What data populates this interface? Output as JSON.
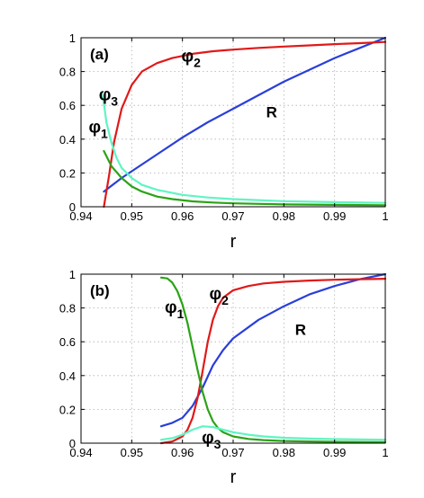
{
  "chart_data": [
    {
      "type": "line",
      "panel_label": "(a)",
      "xlabel": "r",
      "ylabel": "",
      "xlim": [
        0.94,
        1.0
      ],
      "ylim": [
        0,
        1
      ],
      "xticks": [
        0.94,
        0.95,
        0.96,
        0.97,
        0.98,
        0.99,
        1
      ],
      "xtick_labels": [
        "0.94",
        "0.95",
        "0.96",
        "0.97",
        "0.98",
        "0.99",
        "1"
      ],
      "yticks": [
        0,
        0.2,
        0.4,
        0.6,
        0.8,
        1
      ],
      "ytick_labels": [
        "0",
        "0.2",
        "0.4",
        "0.6",
        "0.8",
        "1"
      ],
      "grid": true,
      "series": [
        {
          "name": "R",
          "color": "#2a3fd9",
          "x": [
            0.9445,
            0.948,
            0.952,
            0.956,
            0.96,
            0.965,
            0.97,
            0.975,
            0.98,
            0.985,
            0.99,
            0.995,
            1.0
          ],
          "y": [
            0.09,
            0.17,
            0.25,
            0.33,
            0.41,
            0.5,
            0.58,
            0.66,
            0.74,
            0.81,
            0.88,
            0.94,
            1.0
          ]
        },
        {
          "name": "φ2",
          "color": "#e01919",
          "x": [
            0.9445,
            0.9455,
            0.9465,
            0.948,
            0.95,
            0.952,
            0.955,
            0.958,
            0.962,
            0.966,
            0.97,
            0.975,
            0.98,
            0.985,
            0.99,
            0.995,
            1.0
          ],
          "y": [
            0.0,
            0.18,
            0.38,
            0.58,
            0.72,
            0.8,
            0.85,
            0.88,
            0.905,
            0.92,
            0.93,
            0.94,
            0.948,
            0.955,
            0.962,
            0.968,
            0.975
          ]
        },
        {
          "name": "φ3",
          "color": "#5ff5c2",
          "x": [
            0.9443,
            0.945,
            0.946,
            0.947,
            0.948,
            0.95,
            0.952,
            0.955,
            0.96,
            0.965,
            0.97,
            0.98,
            0.99,
            1.0
          ],
          "y": [
            0.66,
            0.5,
            0.38,
            0.29,
            0.23,
            0.17,
            0.13,
            0.1,
            0.07,
            0.055,
            0.045,
            0.033,
            0.027,
            0.023
          ]
        },
        {
          "name": "φ1",
          "color": "#2aa316",
          "x": [
            0.9445,
            0.946,
            0.948,
            0.95,
            0.952,
            0.955,
            0.958,
            0.962,
            0.966,
            0.97,
            0.98,
            0.99,
            1.0
          ],
          "y": [
            0.33,
            0.24,
            0.17,
            0.12,
            0.09,
            0.06,
            0.045,
            0.032,
            0.025,
            0.02,
            0.014,
            0.011,
            0.009
          ]
        }
      ],
      "annotations": [
        {
          "text": "φ",
          "sub": "3",
          "x": 0.9435,
          "y": 0.63
        },
        {
          "text": "φ",
          "sub": "1",
          "x": 0.9415,
          "y": 0.44
        },
        {
          "text": "φ",
          "sub": "2",
          "x": 0.9598,
          "y": 0.86
        },
        {
          "text": "R",
          "x": 0.9765,
          "y": 0.53
        }
      ]
    },
    {
      "type": "line",
      "panel_label": "(b)",
      "xlabel": "r",
      "ylabel": "",
      "xlim": [
        0.94,
        1.0
      ],
      "ylim": [
        0,
        1
      ],
      "xticks": [
        0.94,
        0.95,
        0.96,
        0.97,
        0.98,
        0.99,
        1
      ],
      "xtick_labels": [
        "0.94",
        "0.95",
        "0.96",
        "0.97",
        "0.98",
        "0.99",
        "1"
      ],
      "yticks": [
        0,
        0.2,
        0.4,
        0.6,
        0.8,
        1
      ],
      "ytick_labels": [
        "0",
        "0.2",
        "0.4",
        "0.6",
        "0.8",
        "1"
      ],
      "grid": true,
      "series": [
        {
          "name": "R",
          "color": "#2a3fd9",
          "x": [
            0.9558,
            0.958,
            0.96,
            0.962,
            0.964,
            0.966,
            0.968,
            0.97,
            0.975,
            0.98,
            0.985,
            0.99,
            0.995,
            1.0
          ],
          "y": [
            0.1,
            0.12,
            0.15,
            0.22,
            0.33,
            0.46,
            0.55,
            0.62,
            0.73,
            0.81,
            0.88,
            0.93,
            0.97,
            1.0
          ]
        },
        {
          "name": "φ2",
          "color": "#e01919",
          "x": [
            0.9558,
            0.958,
            0.96,
            0.961,
            0.962,
            0.963,
            0.964,
            0.965,
            0.966,
            0.967,
            0.968,
            0.97,
            0.973,
            0.976,
            0.98,
            0.985,
            0.99,
            0.995,
            1.0
          ],
          "y": [
            0.0,
            0.01,
            0.04,
            0.08,
            0.15,
            0.27,
            0.43,
            0.6,
            0.73,
            0.81,
            0.86,
            0.905,
            0.93,
            0.945,
            0.955,
            0.962,
            0.967,
            0.97,
            0.973
          ]
        },
        {
          "name": "φ1",
          "color": "#2aa316",
          "x": [
            0.9558,
            0.957,
            0.958,
            0.959,
            0.96,
            0.961,
            0.962,
            0.963,
            0.964,
            0.965,
            0.966,
            0.967,
            0.968,
            0.97,
            0.973,
            0.976,
            0.98,
            0.985,
            0.99,
            1.0
          ],
          "y": [
            0.98,
            0.975,
            0.95,
            0.9,
            0.82,
            0.71,
            0.57,
            0.43,
            0.3,
            0.2,
            0.13,
            0.09,
            0.065,
            0.04,
            0.025,
            0.018,
            0.013,
            0.01,
            0.008,
            0.006
          ]
        },
        {
          "name": "φ3",
          "color": "#5ff5c2",
          "x": [
            0.9558,
            0.958,
            0.96,
            0.962,
            0.964,
            0.966,
            0.968,
            0.97,
            0.973,
            0.976,
            0.98,
            0.985,
            0.99,
            1.0
          ],
          "y": [
            0.02,
            0.03,
            0.05,
            0.08,
            0.1,
            0.095,
            0.08,
            0.065,
            0.05,
            0.04,
            0.032,
            0.027,
            0.024,
            0.02
          ]
        }
      ],
      "annotations": [
        {
          "text": "φ",
          "sub": "1",
          "x": 0.9565,
          "y": 0.77
        },
        {
          "text": "φ",
          "sub": "2",
          "x": 0.9653,
          "y": 0.85
        },
        {
          "text": "φ",
          "sub": "3",
          "x": 0.9638,
          "y": 0.0
        },
        {
          "text": "R",
          "x": 0.9822,
          "y": 0.64
        }
      ]
    }
  ]
}
